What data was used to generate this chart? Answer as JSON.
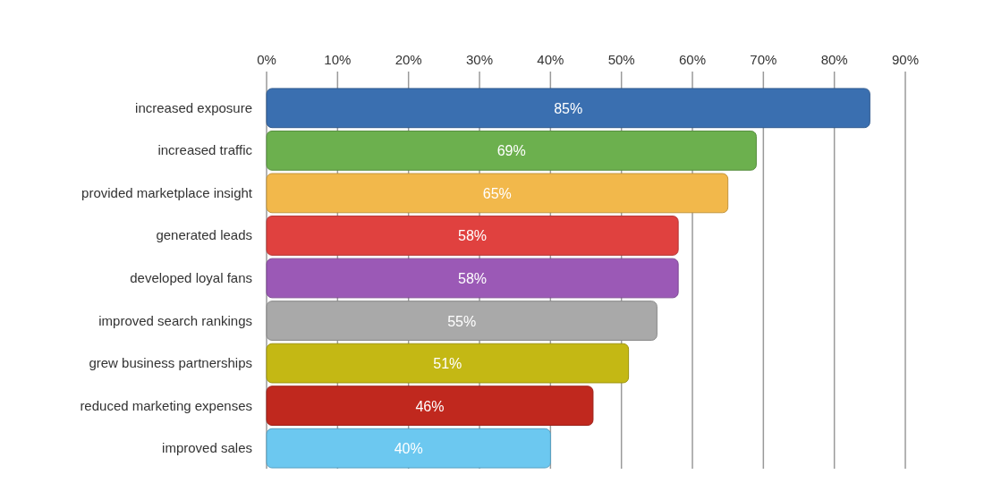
{
  "chart_data": {
    "type": "bar",
    "orientation": "horizontal",
    "categories": [
      "increased exposure",
      "increased traffic",
      "provided marketplace insight",
      "generated leads",
      "developed loyal fans",
      "improved search rankings",
      "grew business partnerships",
      "reduced marketing expenses",
      "improved sales"
    ],
    "values": [
      85,
      69,
      65,
      58,
      58,
      55,
      51,
      46,
      40
    ],
    "colors": [
      "#3a6fb0",
      "#6cb04e",
      "#f2b84b",
      "#e0413f",
      "#9b59b6",
      "#a9a9a9",
      "#c4b814",
      "#c0281e",
      "#6cc8f0"
    ],
    "value_labels": [
      "85%",
      "69%",
      "65%",
      "58%",
      "58%",
      "55%",
      "51%",
      "46%",
      "40%"
    ],
    "xlim": [
      0,
      90
    ],
    "xticks": [
      {
        "value": 0,
        "label": "0%"
      },
      {
        "value": 10,
        "label": "10%"
      },
      {
        "value": 20,
        "label": "20%"
      },
      {
        "value": 30,
        "label": "30%"
      },
      {
        "value": 40,
        "label": "40%"
      },
      {
        "value": 50,
        "label": "50%"
      },
      {
        "value": 60,
        "label": "60%"
      },
      {
        "value": 70,
        "label": "70%"
      },
      {
        "value": 80,
        "label": "80%"
      },
      {
        "value": 90,
        "label": "90%"
      }
    ],
    "grid": "x"
  }
}
